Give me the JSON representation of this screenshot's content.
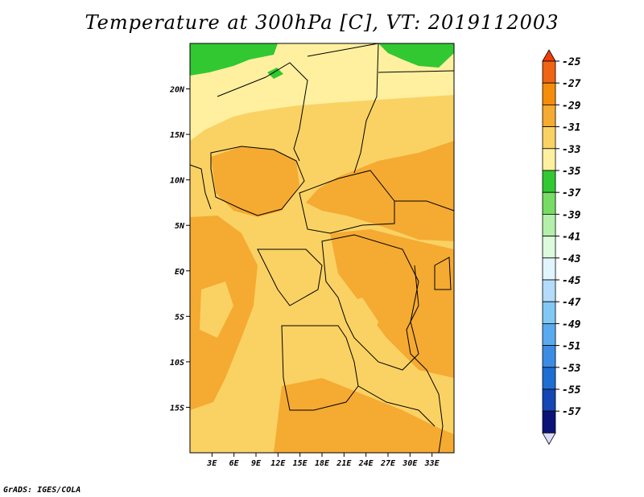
{
  "title": "Temperature at 300hPa [C], VT: 2019112003",
  "credit": "GrADS: IGES/COLA",
  "map": {
    "lon_range": [
      0,
      36
    ],
    "lat_range": [
      -20,
      25
    ],
    "lat_labels": [
      {
        "label": "20N",
        "lat": 20
      },
      {
        "label": "15N",
        "lat": 15
      },
      {
        "label": "10N",
        "lat": 10
      },
      {
        "label": "5N",
        "lat": 5
      },
      {
        "label": "EQ",
        "lat": 0
      },
      {
        "label": "5S",
        "lat": -5
      },
      {
        "label": "10S",
        "lat": -10
      },
      {
        "label": "15S",
        "lat": -15
      }
    ],
    "lon_labels": [
      {
        "label": "3E",
        "lon": 3
      },
      {
        "label": "6E",
        "lon": 6
      },
      {
        "label": "9E",
        "lon": 9
      },
      {
        "label": "12E",
        "lon": 12
      },
      {
        "label": "15E",
        "lon": 15
      },
      {
        "label": "18E",
        "lon": 18
      },
      {
        "label": "21E",
        "lon": 21
      },
      {
        "label": "24E",
        "lon": 24
      },
      {
        "label": "27E",
        "lon": 27
      },
      {
        "label": "30E",
        "lon": 30
      },
      {
        "label": "33E",
        "lon": 33
      }
    ]
  },
  "colorbar": {
    "labels": [
      "-25",
      "-27",
      "-29",
      "-31",
      "-33",
      "-35",
      "-37",
      "-39",
      "-41",
      "-43",
      "-45",
      "-47",
      "-49",
      "-51",
      "-53",
      "-55",
      "-57"
    ],
    "top_color": "#f03c0a",
    "colors": [
      "#f06414",
      "#f58c0a",
      "#f5aa32",
      "#fad264",
      "#fff0a0",
      "#32c832",
      "#78dc64",
      "#b4f0aa",
      "#dcfadc",
      "#e1f5ff",
      "#b4dcfa",
      "#82c8f5",
      "#5aaaf0",
      "#3c8ce6",
      "#1e6ed2",
      "#1446b4",
      "#0a1478"
    ],
    "bottom_color": "#dcdcfa"
  },
  "field_colors": {
    "warm": "#f5aa32",
    "mid": "#fad264",
    "cool": "#fff0a0",
    "green": "#32c832"
  }
}
